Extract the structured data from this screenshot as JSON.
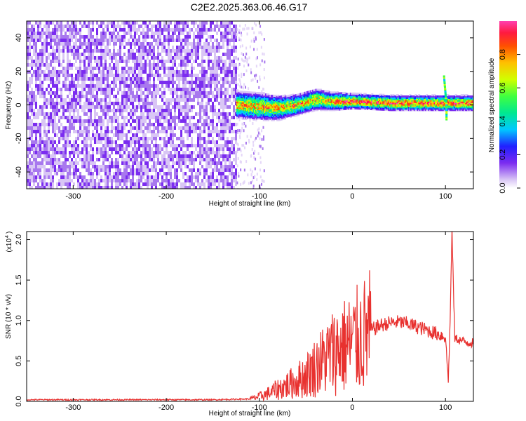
{
  "title": "C2E2.2025.363.06.46.G17",
  "chart_data": [
    {
      "type": "heatmap",
      "xlabel": "Height of straight line (km)",
      "ylabel": "Frequency (Hz)",
      "xlim": [
        -350,
        130
      ],
      "ylim": [
        -50,
        50
      ],
      "xticks": [
        -300,
        -200,
        -100,
        0,
        100
      ],
      "yticks": [
        -40,
        -20,
        0,
        20,
        40
      ],
      "colorbar": {
        "label": "Normalized spectral amplitude",
        "range": [
          0,
          1
        ],
        "ticks": [
          0.0,
          0.2,
          0.4,
          0.6,
          0.8
        ],
        "palette": [
          "#ffffff",
          "#d9c6f5",
          "#7b2cf0",
          "#2020ff",
          "#00c8ff",
          "#00e890",
          "#40ff40",
          "#d0ff00",
          "#ffc000",
          "#ff5000",
          "#ff1a40",
          "#ff3fb0"
        ]
      },
      "noise_region_x": [
        -350,
        -125
      ],
      "signal_band": [
        {
          "x": -125,
          "center": 0,
          "halfwidth": 6
        },
        {
          "x": -100,
          "center": -1,
          "halfwidth": 6
        },
        {
          "x": -80,
          "center": -2,
          "halfwidth": 5
        },
        {
          "x": -60,
          "center": 0,
          "halfwidth": 4
        },
        {
          "x": -40,
          "center": 3,
          "halfwidth": 4
        },
        {
          "x": -20,
          "center": 2,
          "halfwidth": 3
        },
        {
          "x": 0,
          "center": 2,
          "halfwidth": 2
        },
        {
          "x": 40,
          "center": 1,
          "halfwidth": 2
        },
        {
          "x": 80,
          "center": 1,
          "halfwidth": 2
        },
        {
          "x": 100,
          "center": 1,
          "halfwidth": 2
        },
        {
          "x": 130,
          "center": 1,
          "halfwidth": 2
        }
      ]
    },
    {
      "type": "line",
      "xlabel": "Height of straight line (km)",
      "ylabel": "SNR (10 * v/v)",
      "scale_label": "(x10",
      "scale_exp": "4",
      "xlim": [
        -350,
        130
      ],
      "ylim": [
        0,
        2.1
      ],
      "xticks": [
        -300,
        -200,
        -100,
        0,
        100
      ],
      "yticks": [
        "0.0",
        "0.5",
        "1.0",
        "1.5",
        "2.0"
      ],
      "color": "#e8312f",
      "series": [
        {
          "values": [
            [
              -350,
              0.02
            ],
            [
              -300,
              0.02
            ],
            [
              -250,
              0.02
            ],
            [
              -200,
              0.02
            ],
            [
              -150,
              0.02
            ],
            [
              -110,
              0.03
            ],
            [
              -100,
              0.06
            ],
            [
              -90,
              0.1
            ],
            [
              -80,
              0.15
            ],
            [
              -70,
              0.2
            ],
            [
              -60,
              0.25
            ],
            [
              -50,
              0.32
            ],
            [
              -40,
              0.42
            ],
            [
              -30,
              0.52
            ],
            [
              -20,
              0.62
            ],
            [
              -10,
              0.68
            ],
            [
              0,
              0.72
            ],
            [
              10,
              0.8
            ],
            [
              20,
              0.88
            ],
            [
              30,
              0.94
            ],
            [
              40,
              0.97
            ],
            [
              50,
              0.98
            ],
            [
              60,
              0.96
            ],
            [
              70,
              0.92
            ],
            [
              80,
              0.88
            ],
            [
              90,
              0.84
            ],
            [
              100,
              0.8
            ],
            [
              103,
              0.25
            ],
            [
              105,
              1.0
            ],
            [
              107,
              2.1
            ],
            [
              110,
              0.78
            ],
            [
              120,
              0.74
            ],
            [
              130,
              0.72
            ]
          ]
        }
      ]
    }
  ]
}
